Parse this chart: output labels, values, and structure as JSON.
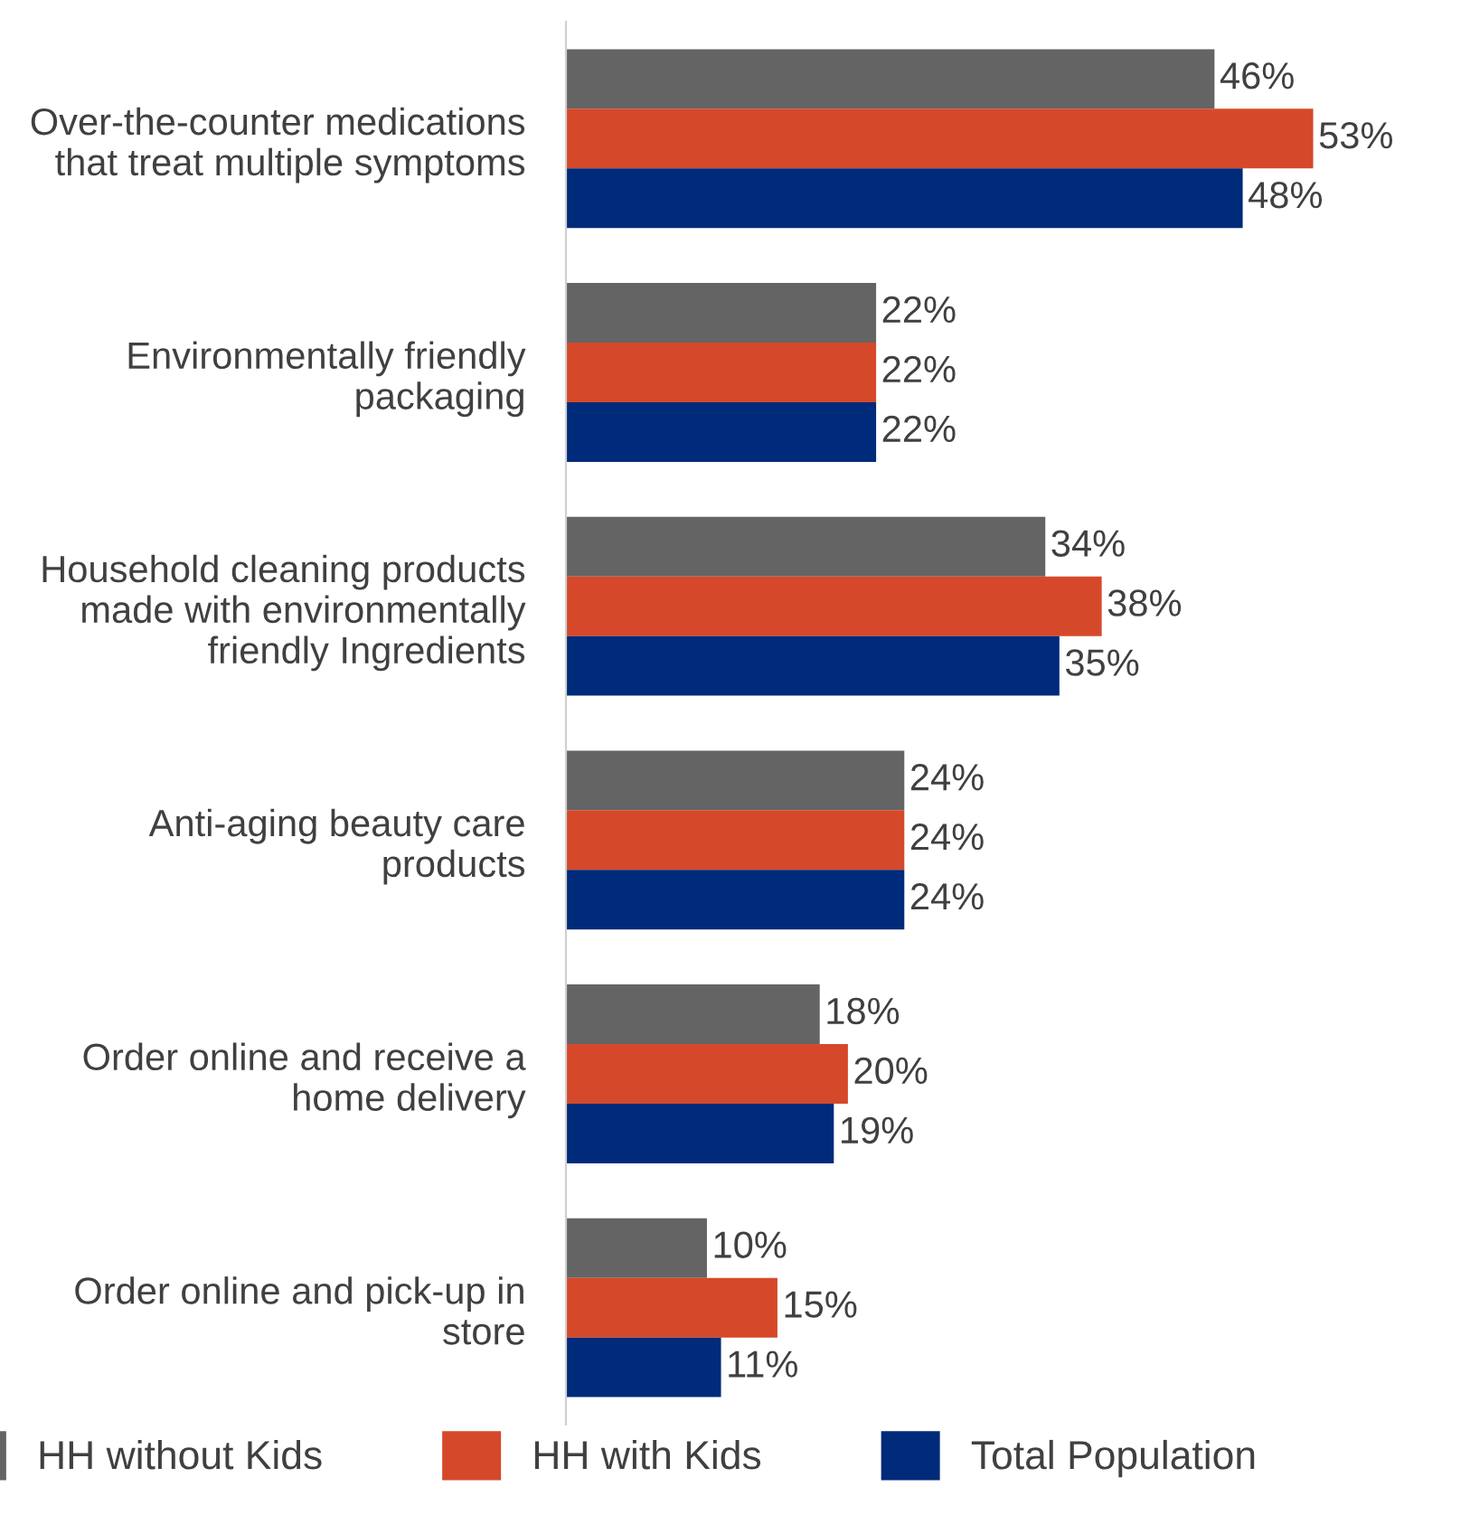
{
  "chart_data": {
    "type": "bar",
    "orientation": "horizontal",
    "categories": [
      "Over-the-counter medications that treat multiple symptoms",
      "Environmentally friendly packaging",
      "Household cleaning products made with environmentally friendly Ingredients",
      "Anti-aging beauty care products",
      "Order online and receive a home delivery",
      "Order online and pick-up in store"
    ],
    "series": [
      {
        "name": "HH without Kids",
        "color": "#646464",
        "values": [
          46,
          22,
          34,
          24,
          18,
          10
        ],
        "value_labels": [
          "46%",
          "22%",
          "34%",
          "24%",
          "18%",
          "10%"
        ]
      },
      {
        "name": "HH with Kids",
        "color": "#d5492a",
        "values": [
          53,
          22,
          38,
          24,
          20,
          15
        ],
        "value_labels": [
          "53%",
          "22%",
          "38%",
          "24%",
          "20%",
          "15%"
        ]
      },
      {
        "name": "Total Population",
        "color": "#002a7a",
        "values": [
          48,
          22,
          35,
          24,
          19,
          11
        ],
        "value_labels": [
          "48%",
          "22%",
          "35%",
          "24%",
          "19%",
          "11%"
        ]
      }
    ],
    "legend": "bottom",
    "grid": false
  }
}
